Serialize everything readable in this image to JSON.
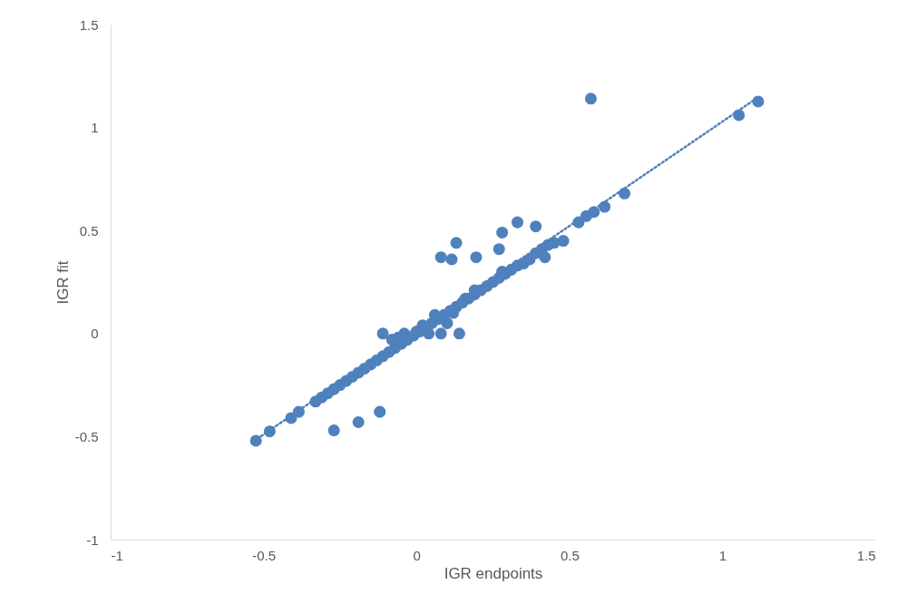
{
  "chart_data": {
    "type": "scatter",
    "xlabel": "IGR endpoints",
    "ylabel": "IGR fit",
    "xlim": [
      -1,
      1.5
    ],
    "ylim": [
      -1,
      1.5
    ],
    "xticks": [
      -1,
      -0.5,
      0,
      0.5,
      1,
      1.5
    ],
    "yticks": [
      -1,
      -0.5,
      0,
      0.5,
      1,
      1.5
    ],
    "grid": false,
    "series": [
      {
        "marker": "circle",
        "color": "#4f81bd",
        "x": [
          -0.525,
          -0.48,
          -0.41,
          -0.385,
          -0.27,
          -0.19,
          -0.12,
          -0.11,
          0.14,
          0.13,
          0.08,
          0.115,
          0.195,
          -0.33,
          -0.31,
          -0.29,
          -0.27,
          -0.25,
          -0.23,
          -0.21,
          -0.19,
          -0.17,
          -0.15,
          -0.13,
          -0.11,
          -0.09,
          -0.07,
          -0.05,
          -0.03,
          -0.01,
          0.01,
          0.05,
          0.07,
          0.09,
          0.11,
          0.13,
          0.15,
          0.17,
          0.19,
          0.21,
          0.23,
          0.25,
          0.27,
          0.29,
          0.31,
          0.33,
          0.35,
          -0.08,
          -0.04,
          0.0,
          0.04,
          0.08,
          0.1,
          0.12,
          0.06,
          0.02,
          -0.06,
          0.16,
          0.28,
          0.37,
          0.39,
          0.41,
          0.43,
          0.45,
          0.19,
          0.27,
          0.28,
          0.33,
          0.39,
          0.42,
          0.48,
          0.53,
          0.555,
          0.58,
          0.615,
          0.68,
          1.054,
          1.117,
          0.57
        ],
        "values": [
          -0.52,
          -0.475,
          -0.41,
          -0.38,
          -0.47,
          -0.43,
          -0.38,
          0.0,
          0.0,
          0.44,
          0.37,
          0.36,
          0.37,
          -0.33,
          -0.31,
          -0.29,
          -0.27,
          -0.25,
          -0.23,
          -0.21,
          -0.19,
          -0.17,
          -0.15,
          -0.13,
          -0.11,
          -0.09,
          -0.07,
          -0.05,
          -0.03,
          -0.01,
          0.01,
          0.05,
          0.07,
          0.09,
          0.11,
          0.13,
          0.15,
          0.17,
          0.19,
          0.21,
          0.23,
          0.25,
          0.27,
          0.29,
          0.31,
          0.33,
          0.34,
          -0.03,
          0.0,
          0.01,
          0.0,
          0.0,
          0.05,
          0.1,
          0.09,
          0.04,
          -0.02,
          0.17,
          0.3,
          0.36,
          0.39,
          0.41,
          0.43,
          0.44,
          0.21,
          0.41,
          0.49,
          0.54,
          0.52,
          0.37,
          0.45,
          0.54,
          0.57,
          0.59,
          0.615,
          0.68,
          1.06,
          1.126,
          1.14
        ]
      },
      {
        "type": "line",
        "marker": "none",
        "color": "#4f81bd",
        "line_style": "dotted",
        "x": [
          -0.52,
          1.12
        ],
        "values": [
          -0.51,
          1.15
        ]
      }
    ]
  }
}
